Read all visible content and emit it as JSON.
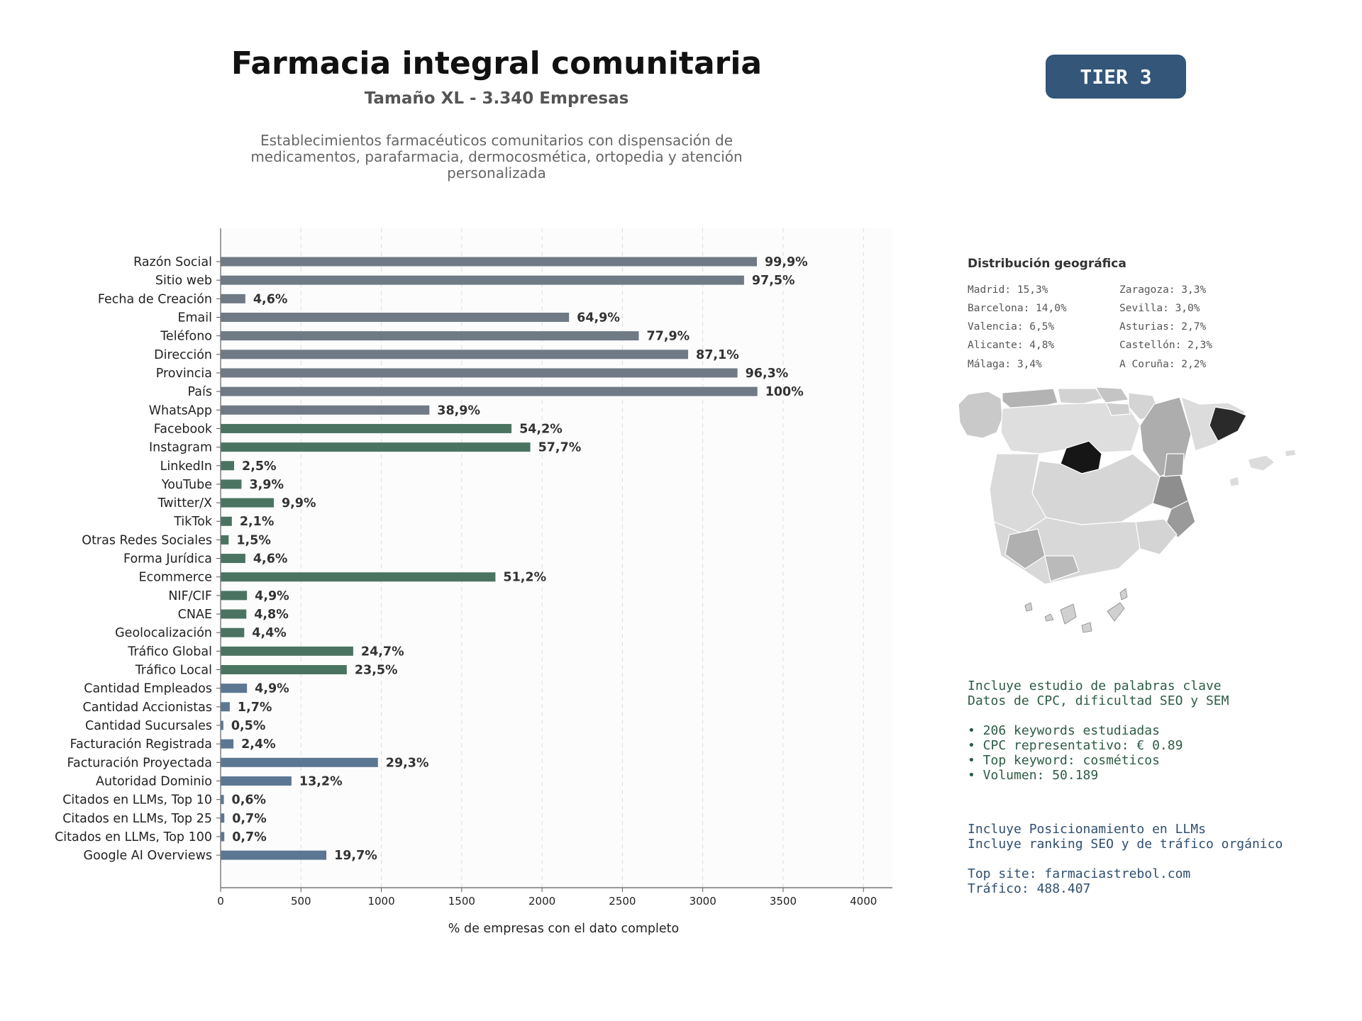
{
  "header": {
    "title": "Farmacia integral comunitaria",
    "subtitle": "Tamaño XL - 3.340 Empresas",
    "description": "Establecimientos farmacéuticos comunitarios con dispensación de medicamentos, parafarmacia, dermocosmética, ortopedia y atención personalizada",
    "badge": "TIER 3"
  },
  "chart_data": {
    "type": "bar",
    "orientation": "horizontal",
    "xlabel": "% de empresas con el dato completo",
    "xlim": [
      0,
      4180
    ],
    "xticks": [
      0,
      500,
      1000,
      1500,
      2000,
      2500,
      3000,
      3500,
      4000
    ],
    "grid": "vertical dashed",
    "colors": {
      "grey": "#707a86",
      "green": "#4a7461",
      "blue": "#5c7793"
    },
    "categories": [
      "Razón Social",
      "Sitio web",
      "Fecha de Creación",
      "Email",
      "Teléfono",
      "Dirección",
      "Provincia",
      "País",
      "WhatsApp",
      "Facebook",
      "Instagram",
      "LinkedIn",
      "YouTube",
      "Twitter/X",
      "TikTok",
      "Otras Redes Sociales",
      "Forma Jurídica",
      "Ecommerce",
      "NIF/CIF",
      "CNAE",
      "Geolocalización",
      "Tráfico Global",
      "Tráfico Local",
      "Cantidad Empleados",
      "Cantidad Accionistas",
      "Cantidad Sucursales",
      "Facturación Registrada",
      "Facturación Proyectada",
      "Autoridad Dominio",
      "Citados en LLMs, Top 10",
      "Citados en LLMs, Top 25",
      "Citados en LLMs, Top 100",
      "Google AI Overviews"
    ],
    "values": [
      3337,
      3257,
      154,
      2168,
      2602,
      2909,
      3216,
      3340,
      1299,
      1810,
      1927,
      84,
      130,
      331,
      70,
      50,
      154,
      1710,
      164,
      160,
      147,
      825,
      785,
      164,
      57,
      17,
      80,
      979,
      441,
      20,
      23,
      23,
      658
    ],
    "labels": [
      "99,9%",
      "97,5%",
      "4,6%",
      "64,9%",
      "77,9%",
      "87,1%",
      "96,3%",
      "100%",
      "38,9%",
      "54,2%",
      "57,7%",
      "2,5%",
      "3,9%",
      "9,9%",
      "2,1%",
      "1,5%",
      "4,6%",
      "51,2%",
      "4,9%",
      "4,8%",
      "4,4%",
      "24,7%",
      "23,5%",
      "4,9%",
      "1,7%",
      "0,5%",
      "2,4%",
      "29,3%",
      "13,2%",
      "0,6%",
      "0,7%",
      "0,7%",
      "19,7%"
    ],
    "groups": [
      "grey",
      "grey",
      "grey",
      "grey",
      "grey",
      "grey",
      "grey",
      "grey",
      "grey",
      "green",
      "green",
      "green",
      "green",
      "green",
      "green",
      "green",
      "green",
      "green",
      "green",
      "green",
      "green",
      "green",
      "green",
      "blue",
      "blue",
      "blue",
      "blue",
      "blue",
      "blue",
      "blue",
      "blue",
      "blue",
      "blue"
    ]
  },
  "geo": {
    "title": "Distribución geográfica",
    "items": [
      "Madrid: 15,3%",
      "Barcelona: 14,0%",
      "Valencia: 6,5%",
      "Alicante: 4,8%",
      "Málaga: 3,4%",
      "Zaragoza: 3,3%",
      "Sevilla: 3,0%",
      "Asturias: 2,7%",
      "Castellón: 2,3%",
      "A Coruña: 2,2%"
    ]
  },
  "info": {
    "keywords_lines": [
      "Incluye estudio de palabras clave",
      "Datos de CPC, dificultad SEO y SEM",
      "",
      "• 206 keywords estudiadas",
      "• CPC representativo: € 0.89",
      "• Top keyword: cosméticos",
      "• Volumen: 50.189"
    ],
    "llm_lines": [
      "Incluye Posicionamiento en LLMs",
      "Incluye ranking SEO y de tráfico orgánico",
      "",
      "Top site: farmaciastrebol.com",
      "Tráfico: 488.407"
    ]
  }
}
